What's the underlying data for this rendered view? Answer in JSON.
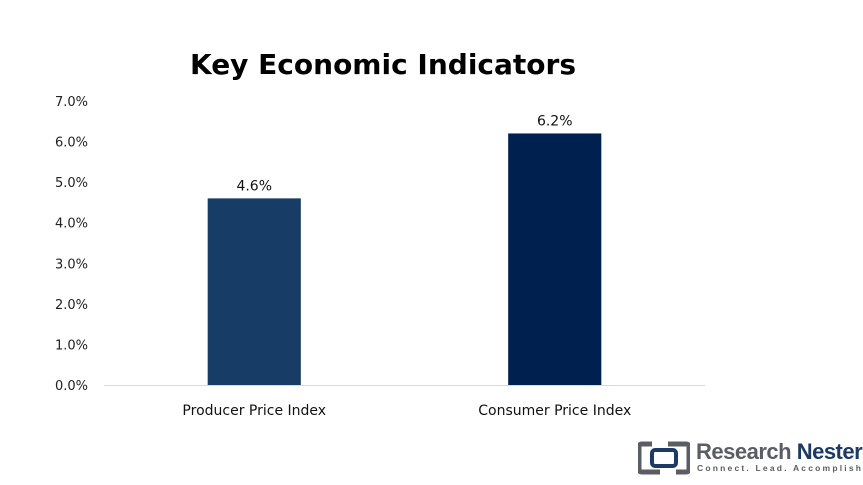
{
  "chart_data": {
    "type": "bar",
    "title": "Key Economic Indicators",
    "categories": [
      "Producer Price Index",
      "Consumer Price Index"
    ],
    "values": [
      4.6,
      6.2
    ],
    "data_labels": [
      "4.6%",
      "6.2%"
    ],
    "bar_colors": [
      "#173c66",
      "#00204f"
    ],
    "ylim": [
      0,
      7
    ],
    "yticks": [
      "0.0%",
      "1.0%",
      "2.0%",
      "3.0%",
      "4.0%",
      "5.0%",
      "6.0%",
      "7.0%"
    ],
    "ytick_values": [
      0,
      1,
      2,
      3,
      4,
      5,
      6,
      7
    ],
    "grid": false,
    "legend": "none"
  },
  "logo": {
    "word1": "Research",
    "word2": "Nester",
    "tagline": "Connect. Lead. Accomplish",
    "colors": {
      "gray": "#5a5d64",
      "navy": "#1c3a63"
    }
  }
}
